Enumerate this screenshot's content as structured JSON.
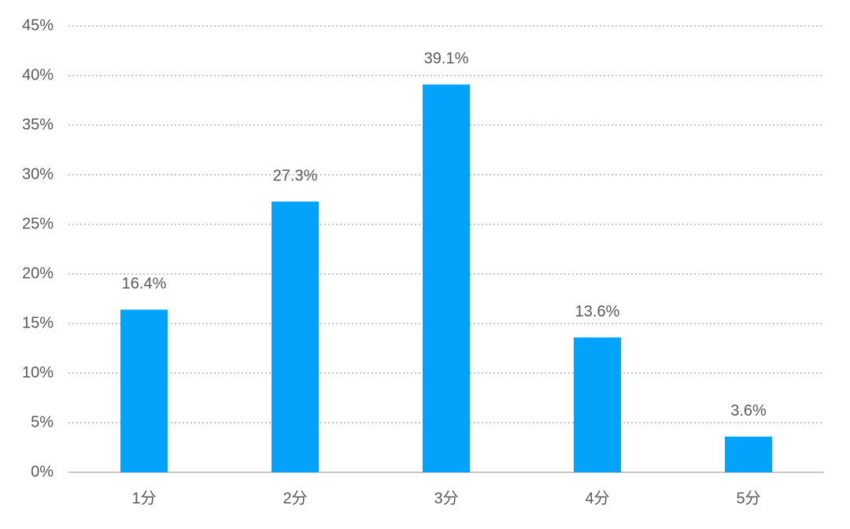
{
  "chart_data": {
    "type": "bar",
    "categories": [
      "1分",
      "2分",
      "3分",
      "4分",
      "5分"
    ],
    "values": [
      16.4,
      27.3,
      39.1,
      13.6,
      3.6
    ],
    "value_labels": [
      "16.4%",
      "27.3%",
      "39.1%",
      "13.6%",
      "3.6%"
    ],
    "color": "#03a3fb",
    "ylim": [
      0,
      45
    ],
    "yticks": [
      {
        "value": 0,
        "label": "0%"
      },
      {
        "value": 5,
        "label": "5%"
      },
      {
        "value": 10,
        "label": "10%"
      },
      {
        "value": 15,
        "label": "15%"
      },
      {
        "value": 20,
        "label": "20%"
      },
      {
        "value": 25,
        "label": "25%"
      },
      {
        "value": 30,
        "label": "30%"
      },
      {
        "value": 35,
        "label": "35%"
      },
      {
        "value": 40,
        "label": "40%"
      },
      {
        "value": 45,
        "label": "45%"
      }
    ],
    "grid": true
  }
}
